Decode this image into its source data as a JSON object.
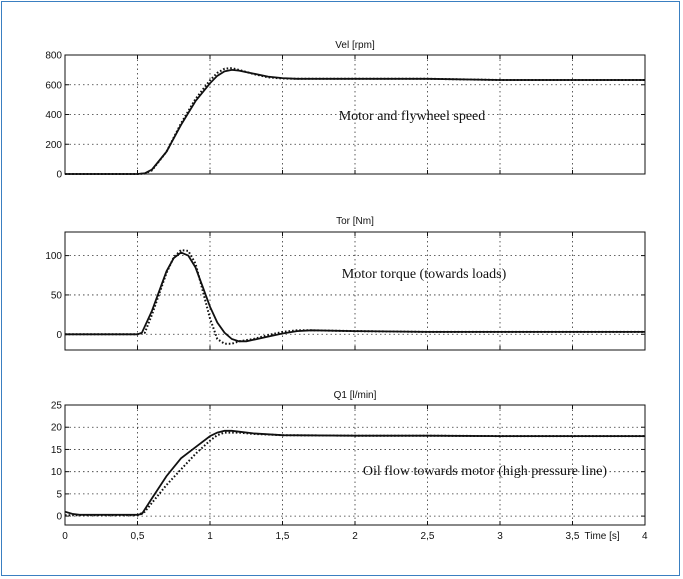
{
  "frame_color": "#3a7fc1",
  "chart_data": [
    {
      "type": "line",
      "title": "Vel  [rpm]",
      "annotation": "Motor and flywheel speed",
      "xlim": [
        0,
        4
      ],
      "ylim": [
        0,
        800
      ],
      "yticks": [
        0,
        200,
        400,
        600,
        800
      ],
      "ytick_labels": [
        "0",
        "200",
        "400",
        "600",
        "800"
      ],
      "grid": true,
      "series": [
        {
          "style": "solid",
          "x": [
            0,
            0.5,
            0.55,
            0.6,
            0.7,
            0.8,
            0.9,
            1.0,
            1.05,
            1.1,
            1.15,
            1.2,
            1.3,
            1.4,
            1.5,
            1.6,
            2.0,
            2.5,
            3.0,
            3.5,
            4.0
          ],
          "y": [
            0,
            0,
            5,
            30,
            150,
            330,
            490,
            610,
            660,
            690,
            700,
            695,
            675,
            655,
            645,
            640,
            640,
            640,
            632,
            632,
            632
          ]
        },
        {
          "style": "dotted",
          "x": [
            0,
            0.5,
            0.55,
            0.6,
            0.7,
            0.8,
            0.9,
            1.0,
            1.05,
            1.1,
            1.15,
            1.2,
            1.3,
            1.4,
            1.5,
            1.6,
            2.0,
            2.5,
            3.0,
            3.5,
            4.0
          ],
          "y": [
            0,
            0,
            3,
            25,
            150,
            340,
            505,
            630,
            680,
            708,
            712,
            700,
            672,
            650,
            642,
            640,
            640,
            640,
            632,
            632,
            632
          ]
        }
      ]
    },
    {
      "type": "line",
      "title": "Tor  [Nm]",
      "annotation": "Motor torque (towards loads)",
      "xlim": [
        0,
        4
      ],
      "ylim": [
        -20,
        130
      ],
      "yticks": [
        0,
        50,
        100
      ],
      "ytick_labels": [
        "0",
        "50",
        "100"
      ],
      "grid": true,
      "series": [
        {
          "style": "solid",
          "x": [
            0,
            0.5,
            0.53,
            0.6,
            0.7,
            0.75,
            0.8,
            0.85,
            0.9,
            0.95,
            1.0,
            1.05,
            1.1,
            1.15,
            1.2,
            1.25,
            1.3,
            1.4,
            1.5,
            1.6,
            1.7,
            2.0,
            2.5,
            3.0,
            3.5,
            4.0
          ],
          "y": [
            0,
            0,
            2,
            30,
            80,
            97,
            104,
            100,
            85,
            60,
            35,
            15,
            2,
            -6,
            -9,
            -9,
            -7,
            -3,
            1,
            4,
            5,
            4,
            3,
            3,
            3,
            3
          ]
        },
        {
          "style": "dotted",
          "x": [
            0,
            0.5,
            0.55,
            0.6,
            0.7,
            0.75,
            0.8,
            0.85,
            0.9,
            0.95,
            1.0,
            1.05,
            1.1,
            1.15,
            1.2,
            1.3,
            1.4,
            1.5,
            1.6,
            1.7,
            2.0,
            2.5,
            3.0,
            3.5,
            4.0
          ],
          "y": [
            0,
            0,
            2,
            25,
            78,
            98,
            107,
            106,
            90,
            55,
            20,
            -6,
            -12,
            -12,
            -9,
            -6,
            -1,
            3,
            5,
            5,
            4,
            3,
            3,
            3,
            3
          ]
        }
      ]
    },
    {
      "type": "line",
      "title": "Q1    [l/min]",
      "annotation": "Oil flow towards motor (high pressure line)",
      "xlim": [
        0,
        4
      ],
      "ylim": [
        -2,
        25
      ],
      "yticks": [
        0,
        5,
        10,
        15,
        20,
        25
      ],
      "ytick_labels": [
        "0",
        "5",
        "10",
        "15",
        "20",
        "25"
      ],
      "xticks": [
        0,
        0.5,
        1,
        1.5,
        2,
        2.5,
        3,
        3.5,
        4
      ],
      "xtick_labels": [
        "0",
        "0,5",
        "1",
        "1,5",
        "2",
        "2,5",
        "3",
        "3,5",
        "4"
      ],
      "xlabel": "Time [s]",
      "grid": true,
      "series": [
        {
          "style": "solid",
          "x": [
            0,
            0.05,
            0.1,
            0.5,
            0.53,
            0.6,
            0.7,
            0.8,
            0.9,
            1.0,
            1.05,
            1.1,
            1.15,
            1.2,
            1.3,
            1.5,
            2.0,
            2.5,
            3.0,
            3.5,
            4.0
          ],
          "y": [
            1,
            0.5,
            0.3,
            0.3,
            0.5,
            4,
            9,
            13,
            15.5,
            18,
            18.8,
            19.2,
            19.2,
            19,
            18.6,
            18.2,
            18.1,
            18.1,
            18,
            18,
            18
          ]
        },
        {
          "style": "dotted",
          "x": [
            0,
            0.1,
            0.5,
            0.55,
            0.6,
            0.7,
            0.8,
            0.9,
            1.0,
            1.05,
            1.1,
            1.2,
            1.3,
            1.5,
            2.0,
            2.5,
            3.0,
            3.5,
            4.0
          ],
          "y": [
            0.2,
            0.2,
            0.2,
            1,
            3,
            7,
            10.5,
            14,
            17,
            18.2,
            18.8,
            18.8,
            18.5,
            18.2,
            18.1,
            18.1,
            18,
            18,
            18
          ]
        }
      ]
    }
  ]
}
